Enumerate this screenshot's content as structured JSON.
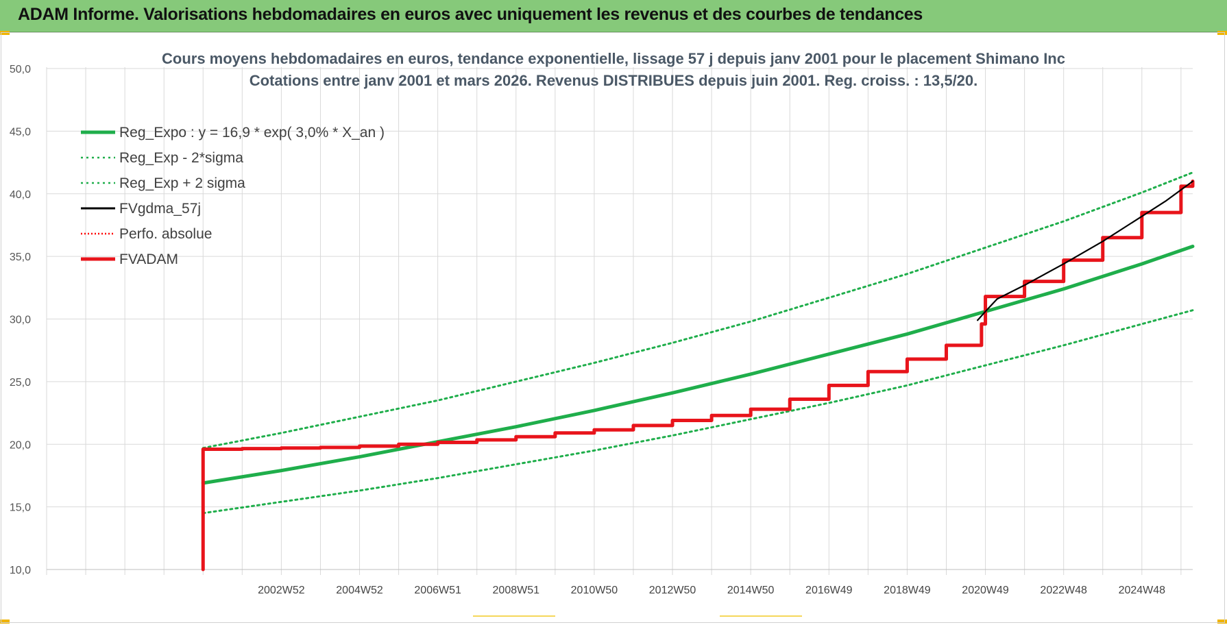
{
  "header": {
    "title": "ADAM Informe. Valorisations hebdomadaires en euros avec uniquement les revenus et des courbes de tendances"
  },
  "chart_data": {
    "type": "line",
    "title": "Cours moyens hebdomadaires en euros, tendance exponentielle, lissage 57 j depuis janv 2001  pour le placement Shimano Inc",
    "subtitle": "Cotations entre janv 2001 et mars 2026. Revenus DISTRIBUES depuis juin 2001. Reg. croiss. : 13,5/20.",
    "xlabel": "",
    "ylabel": "",
    "ylim": [
      10,
      50
    ],
    "xlim": [
      1997.0,
      2026.3
    ],
    "y_ticks": [
      "10,0",
      "15,0",
      "20,0",
      "25,0",
      "30,0",
      "35,0",
      "40,0",
      "45,0",
      "50,0"
    ],
    "x_ticks": [
      {
        "label": "2002W52",
        "x": 2003.0
      },
      {
        "label": "2004W52",
        "x": 2005.0
      },
      {
        "label": "2006W51",
        "x": 2007.0
      },
      {
        "label": "2008W51",
        "x": 2009.0
      },
      {
        "label": "2010W50",
        "x": 2011.0
      },
      {
        "label": "2012W50",
        "x": 2013.0
      },
      {
        "label": "2014W50",
        "x": 2015.0
      },
      {
        "label": "2016W49",
        "x": 2017.0
      },
      {
        "label": "2018W49",
        "x": 2019.0
      },
      {
        "label": "2020W49",
        "x": 2021.0
      },
      {
        "label": "2022W48",
        "x": 2023.0
      },
      {
        "label": "2024W48",
        "x": 2025.0
      }
    ],
    "grid": true,
    "legend_position": "top-left",
    "series": [
      {
        "name": "Reg_Expo : y = 16,9 * exp( 3,0% *  X_an )",
        "color": "#1fae4b",
        "style": "solid-thick",
        "x": [
          2001.0,
          2003.0,
          2005.0,
          2007.0,
          2009.0,
          2011.0,
          2013.0,
          2015.0,
          2017.0,
          2019.0,
          2021.0,
          2023.0,
          2025.0,
          2026.3
        ],
        "y": [
          16.9,
          17.9,
          19.0,
          20.2,
          21.4,
          22.7,
          24.1,
          25.6,
          27.2,
          28.8,
          30.6,
          32.4,
          34.4,
          35.8
        ]
      },
      {
        "name": "Reg_Exp - 2*sigma",
        "color": "#1fae4b",
        "style": "dotted",
        "x": [
          2001.0,
          2003.0,
          2005.0,
          2007.0,
          2009.0,
          2011.0,
          2013.0,
          2015.0,
          2017.0,
          2019.0,
          2021.0,
          2023.0,
          2025.0,
          2026.3
        ],
        "y": [
          14.5,
          15.4,
          16.3,
          17.3,
          18.4,
          19.5,
          20.7,
          22.0,
          23.3,
          24.7,
          26.3,
          27.9,
          29.6,
          30.7
        ]
      },
      {
        "name": "Reg_Exp + 2 sigma",
        "color": "#1fae4b",
        "style": "dotted",
        "x": [
          2001.0,
          2003.0,
          2005.0,
          2007.0,
          2009.0,
          2011.0,
          2013.0,
          2015.0,
          2017.0,
          2019.0,
          2021.0,
          2023.0,
          2025.0,
          2026.3
        ],
        "y": [
          19.7,
          20.9,
          22.2,
          23.5,
          25.0,
          26.5,
          28.1,
          29.8,
          31.7,
          33.6,
          35.7,
          37.8,
          40.1,
          41.7
        ]
      },
      {
        "name": "FVgdma_57j",
        "color": "#000000",
        "style": "solid",
        "x": [
          2020.8,
          2021.0,
          2021.3,
          2022.0,
          2023.0,
          2024.0,
          2025.0,
          2025.6,
          2026.3
        ],
        "y": [
          29.9,
          30.6,
          31.6,
          32.7,
          34.4,
          36.2,
          38.2,
          39.4,
          41.0
        ]
      },
      {
        "name": "Perfo. absolue",
        "color": "#ff0000",
        "style": "dotted",
        "x": [],
        "y": []
      },
      {
        "name": "FVADAM",
        "color": "#e8141b",
        "style": "solid-thick",
        "x": [
          2001.0,
          2001.0,
          2002.0,
          2003.0,
          2004.0,
          2005.0,
          2006.0,
          2007.0,
          2008.0,
          2009.0,
          2010.0,
          2011.0,
          2012.0,
          2013.0,
          2014.0,
          2015.0,
          2016.0,
          2017.0,
          2018.0,
          2019.0,
          2020.0,
          2020.9,
          2021.0,
          2022.0,
          2023.0,
          2024.0,
          2025.0,
          2026.0,
          2026.3
        ],
        "y": [
          10.0,
          19.6,
          19.65,
          19.7,
          19.75,
          19.85,
          20.0,
          20.15,
          20.35,
          20.6,
          20.9,
          21.15,
          21.5,
          21.9,
          22.3,
          22.8,
          23.6,
          24.7,
          25.8,
          26.8,
          27.9,
          29.6,
          31.8,
          33.0,
          34.7,
          36.5,
          38.5,
          40.6,
          41.0
        ]
      }
    ]
  }
}
